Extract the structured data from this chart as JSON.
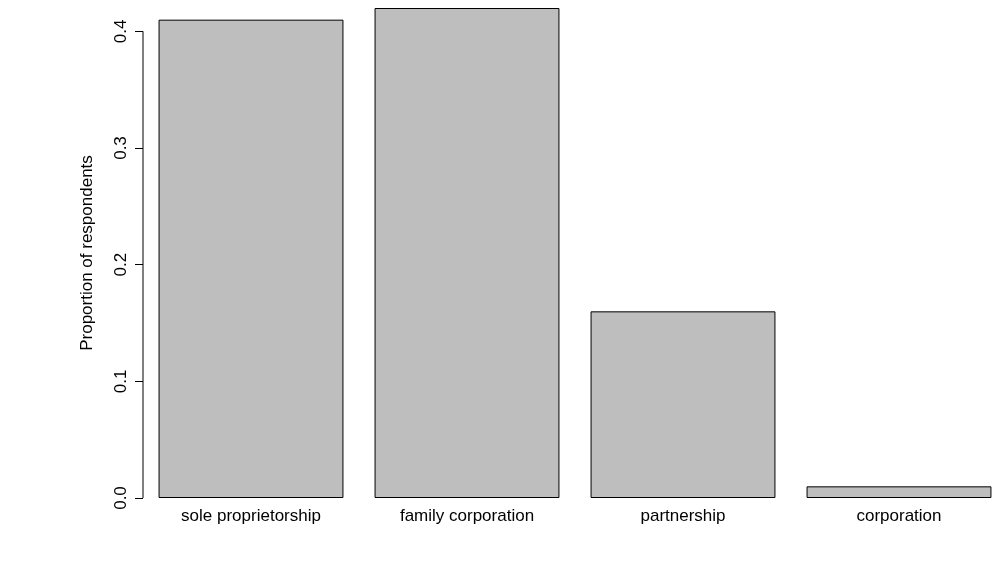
{
  "chart_data": {
    "type": "bar",
    "ylabel": "Proportion of respondents",
    "categories": [
      "sole proprietorship",
      "family corporation",
      "partnership",
      "corporation"
    ],
    "values": [
      0.41,
      0.42,
      0.16,
      0.01
    ],
    "color": "#bebebe",
    "ylim": [
      0,
      0.42
    ],
    "yticks": [
      {
        "value": 0,
        "label": "0.0"
      },
      {
        "value": 0.1,
        "label": "0.1"
      },
      {
        "value": 0.2,
        "label": "0.2"
      },
      {
        "value": 0.3,
        "label": "0.3"
      },
      {
        "value": 0.4,
        "label": "0.4"
      }
    ],
    "grid": false
  }
}
